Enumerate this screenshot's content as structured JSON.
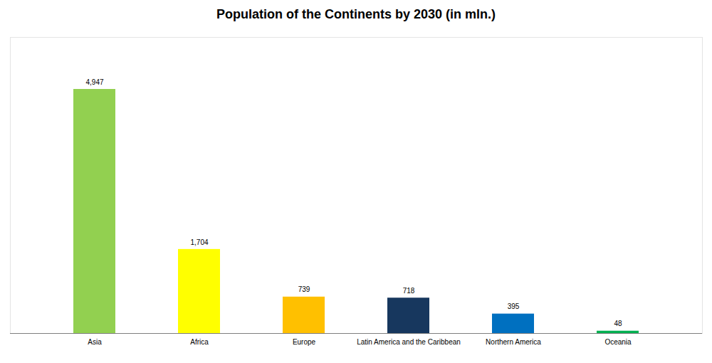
{
  "chart_data": {
    "type": "bar",
    "title": "Population of the Continents by 2030 (in mln.)",
    "categories": [
      "Asia",
      "Africa",
      "Europe",
      "Latin America and the Caribbean",
      "Northern America",
      "Oceania"
    ],
    "values": [
      4947,
      1704,
      739,
      718,
      395,
      48
    ],
    "value_labels": [
      "4,947",
      "1,704",
      "739",
      "718",
      "395",
      "48"
    ],
    "colors": [
      "#92d050",
      "#ffff00",
      "#ffc000",
      "#17375e",
      "#0070c0",
      "#00b050"
    ],
    "ylim": [
      0,
      6000
    ],
    "yticks": [],
    "grid": false,
    "data_labels": true,
    "tick_labels": "x"
  }
}
